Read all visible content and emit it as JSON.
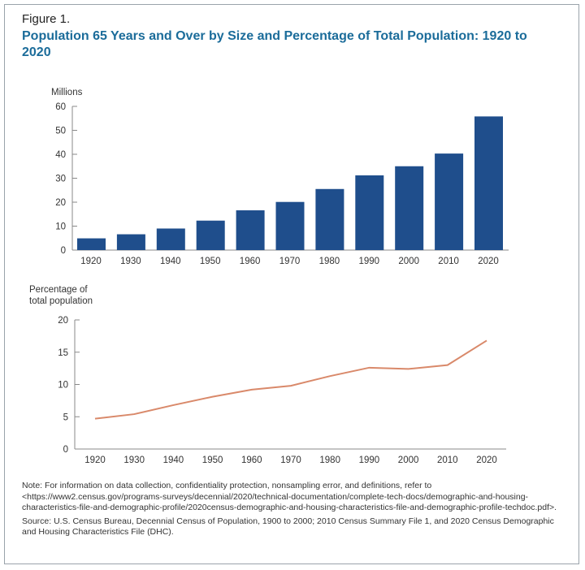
{
  "figure_label": "Figure 1.",
  "title": "Population 65 Years and Over by Size and Percentage of Total Population: 1920 to 2020",
  "note": "Note: For information on data collection, confidentiality protection, nonsampling error, and definitions, refer to <https://www2.census.gov/programs-surveys/decennial/2020/technical-documentation/complete-tech-docs/demographic-and-housing-characteristics-file-and-demographic-profile/2020census-demographic-and-housing-characteristics-file-and-demographic-profile-techdoc.pdf>.",
  "source": "Source: U.S. Census Bureau, Decennial Census of Population, 1900 to 2000; 2010 Census Summary File 1, and 2020 Census Demographic and Housing Characteristics File (DHC).",
  "chart_data": [
    {
      "type": "bar",
      "ylabel": "Millions",
      "categories": [
        "1920",
        "1930",
        "1940",
        "1950",
        "1960",
        "1970",
        "1980",
        "1990",
        "2000",
        "2010",
        "2020"
      ],
      "values": [
        4.9,
        6.6,
        9.0,
        12.3,
        16.6,
        20.1,
        25.5,
        31.2,
        35.0,
        40.3,
        55.8
      ],
      "ylim": [
        0,
        60
      ],
      "yticks": [
        0,
        10,
        20,
        30,
        40,
        50,
        60
      ],
      "color": "#1f4e8c",
      "grid": false
    },
    {
      "type": "line",
      "ylabel": "Percentage of total population",
      "categories": [
        "1920",
        "1930",
        "1940",
        "1950",
        "1960",
        "1970",
        "1980",
        "1990",
        "2000",
        "2010",
        "2020"
      ],
      "values": [
        4.7,
        5.4,
        6.8,
        8.1,
        9.2,
        9.8,
        11.3,
        12.6,
        12.4,
        13.0,
        16.8
      ],
      "ylim": [
        0,
        20
      ],
      "yticks": [
        0,
        5,
        10,
        15,
        20
      ],
      "color": "#d9896a",
      "grid": false
    }
  ]
}
